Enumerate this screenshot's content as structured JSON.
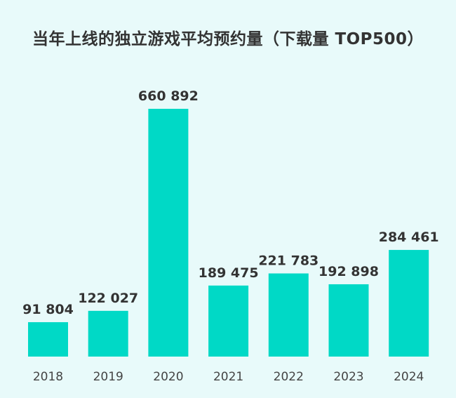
{
  "chart_data": {
    "type": "bar",
    "title": "当年上线的独立游戏平均预约量（下载量 TOP500）",
    "categories": [
      "2018",
      "2019",
      "2020",
      "2021",
      "2022",
      "2023",
      "2024"
    ],
    "values": [
      91804,
      122027,
      660892,
      189475,
      221783,
      192898,
      284461
    ],
    "value_labels": [
      "91 804",
      "122 027",
      "660 892",
      "189 475",
      "221 783",
      "192 898",
      "284 461"
    ],
    "xlabel": "",
    "ylabel": "",
    "grid": false,
    "colors": {
      "bar": "#00d9c6",
      "background": "#e8fafa",
      "text": "#333333"
    }
  }
}
